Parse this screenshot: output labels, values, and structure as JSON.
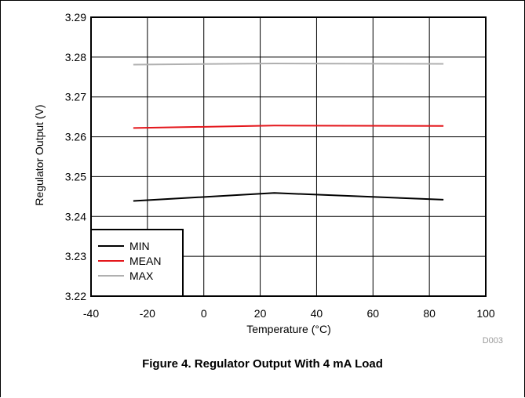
{
  "caption": "Figure 4. Regulator Output With 4 mA Load",
  "chart_data": {
    "type": "line",
    "title": "",
    "xlabel": "Temperature (°C)",
    "ylabel": "Regulator Output (V)",
    "xlim": [
      -40,
      100
    ],
    "ylim": [
      3.22,
      3.29
    ],
    "x_ticks": [
      -40,
      -20,
      0,
      20,
      40,
      60,
      80,
      100
    ],
    "y_ticks": [
      3.22,
      3.23,
      3.24,
      3.25,
      3.26,
      3.27,
      3.28,
      3.29
    ],
    "x_tick_labels": [
      "-40",
      "-20",
      "0",
      "20",
      "40",
      "60",
      "80",
      "100"
    ],
    "y_tick_labels": [
      "3.22",
      "3.23",
      "3.24",
      "3.25",
      "3.26",
      "3.27",
      "3.28",
      "3.29"
    ],
    "grid": true,
    "legend_position": "bottom-left",
    "code_label": "D003",
    "x": [
      -25,
      25,
      85
    ],
    "series": [
      {
        "name": "MIN",
        "color": "#000000",
        "values": [
          3.2439,
          3.2459,
          3.2442
        ]
      },
      {
        "name": "MEAN",
        "color": "#e4161b",
        "values": [
          3.2622,
          3.2628,
          3.2627
        ]
      },
      {
        "name": "MAX",
        "color": "#b0b0b0",
        "values": [
          3.2781,
          3.2784,
          3.2783
        ]
      }
    ]
  }
}
